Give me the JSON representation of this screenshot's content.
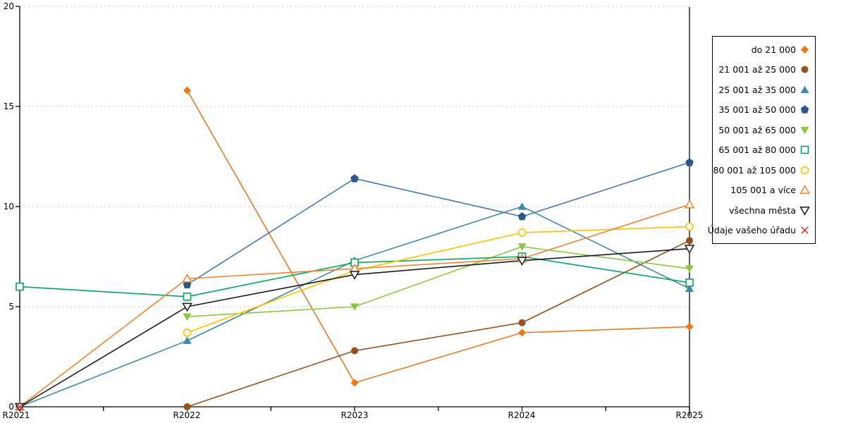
{
  "chart_data": {
    "type": "line",
    "title": "",
    "xlabel": "",
    "ylabel": "",
    "x_categories": [
      "R2021",
      "R2022",
      "R2023",
      "R2024",
      "R2025"
    ],
    "ylim": [
      0,
      20
    ],
    "yticks": [
      0,
      5,
      10,
      15,
      20
    ],
    "grid": "horizontal-dotted",
    "grid_color": "#c3c3c3",
    "axis_color": "#000000",
    "legend_position": "right-outside",
    "series": [
      {
        "name": "do 21 000",
        "color": "#E8791E",
        "marker": "diamond-filled",
        "values": [
          null,
          15.8,
          1.2,
          3.7,
          4.0
        ]
      },
      {
        "name": "21 001 až 25 000",
        "color": "#96511E",
        "marker": "circle-filled",
        "values": [
          null,
          0,
          2.8,
          4.2,
          8.3
        ]
      },
      {
        "name": "25 001 až 35 000",
        "color": "#3E89A5",
        "marker": "triangle-up-filled",
        "values": [
          0,
          3.3,
          7.3,
          10.0,
          5.9
        ]
      },
      {
        "name": "35 001 až 50 000",
        "color": "#2C568C",
        "line_color": "#4678AE",
        "marker": "pentagon-filled",
        "values": [
          null,
          6.1,
          11.4,
          9.5,
          12.2
        ]
      },
      {
        "name": "50 001 až 65 000",
        "color": "#8CC63E",
        "marker": "triangle-down-filled",
        "values": [
          null,
          4.5,
          5.0,
          8.0,
          6.9
        ]
      },
      {
        "name": "65 001 až 80 000",
        "color": "#00A65C",
        "marker": "square-open",
        "values": [
          6.0,
          5.5,
          7.2,
          7.5,
          6.2
        ]
      },
      {
        "name": "80 001 až 105 000",
        "color": "#FFC002",
        "marker": "circle-open",
        "values": [
          null,
          3.7,
          6.8,
          8.7,
          9.0
        ]
      },
      {
        "name": "105 001 a více",
        "color": "#F28130",
        "marker": "triangle-up-open",
        "values": [
          0,
          6.4,
          6.9,
          7.4,
          10.1
        ]
      },
      {
        "name": "všechna města",
        "color": "#1A1A1A",
        "marker": "triangle-down-open",
        "values": [
          0,
          5.0,
          6.6,
          7.3,
          7.9
        ]
      },
      {
        "name": "Údaje vašeho úřadu",
        "color": "#CB2B2B",
        "marker": "x",
        "values": [
          0,
          null,
          null,
          null,
          null
        ]
      }
    ]
  }
}
